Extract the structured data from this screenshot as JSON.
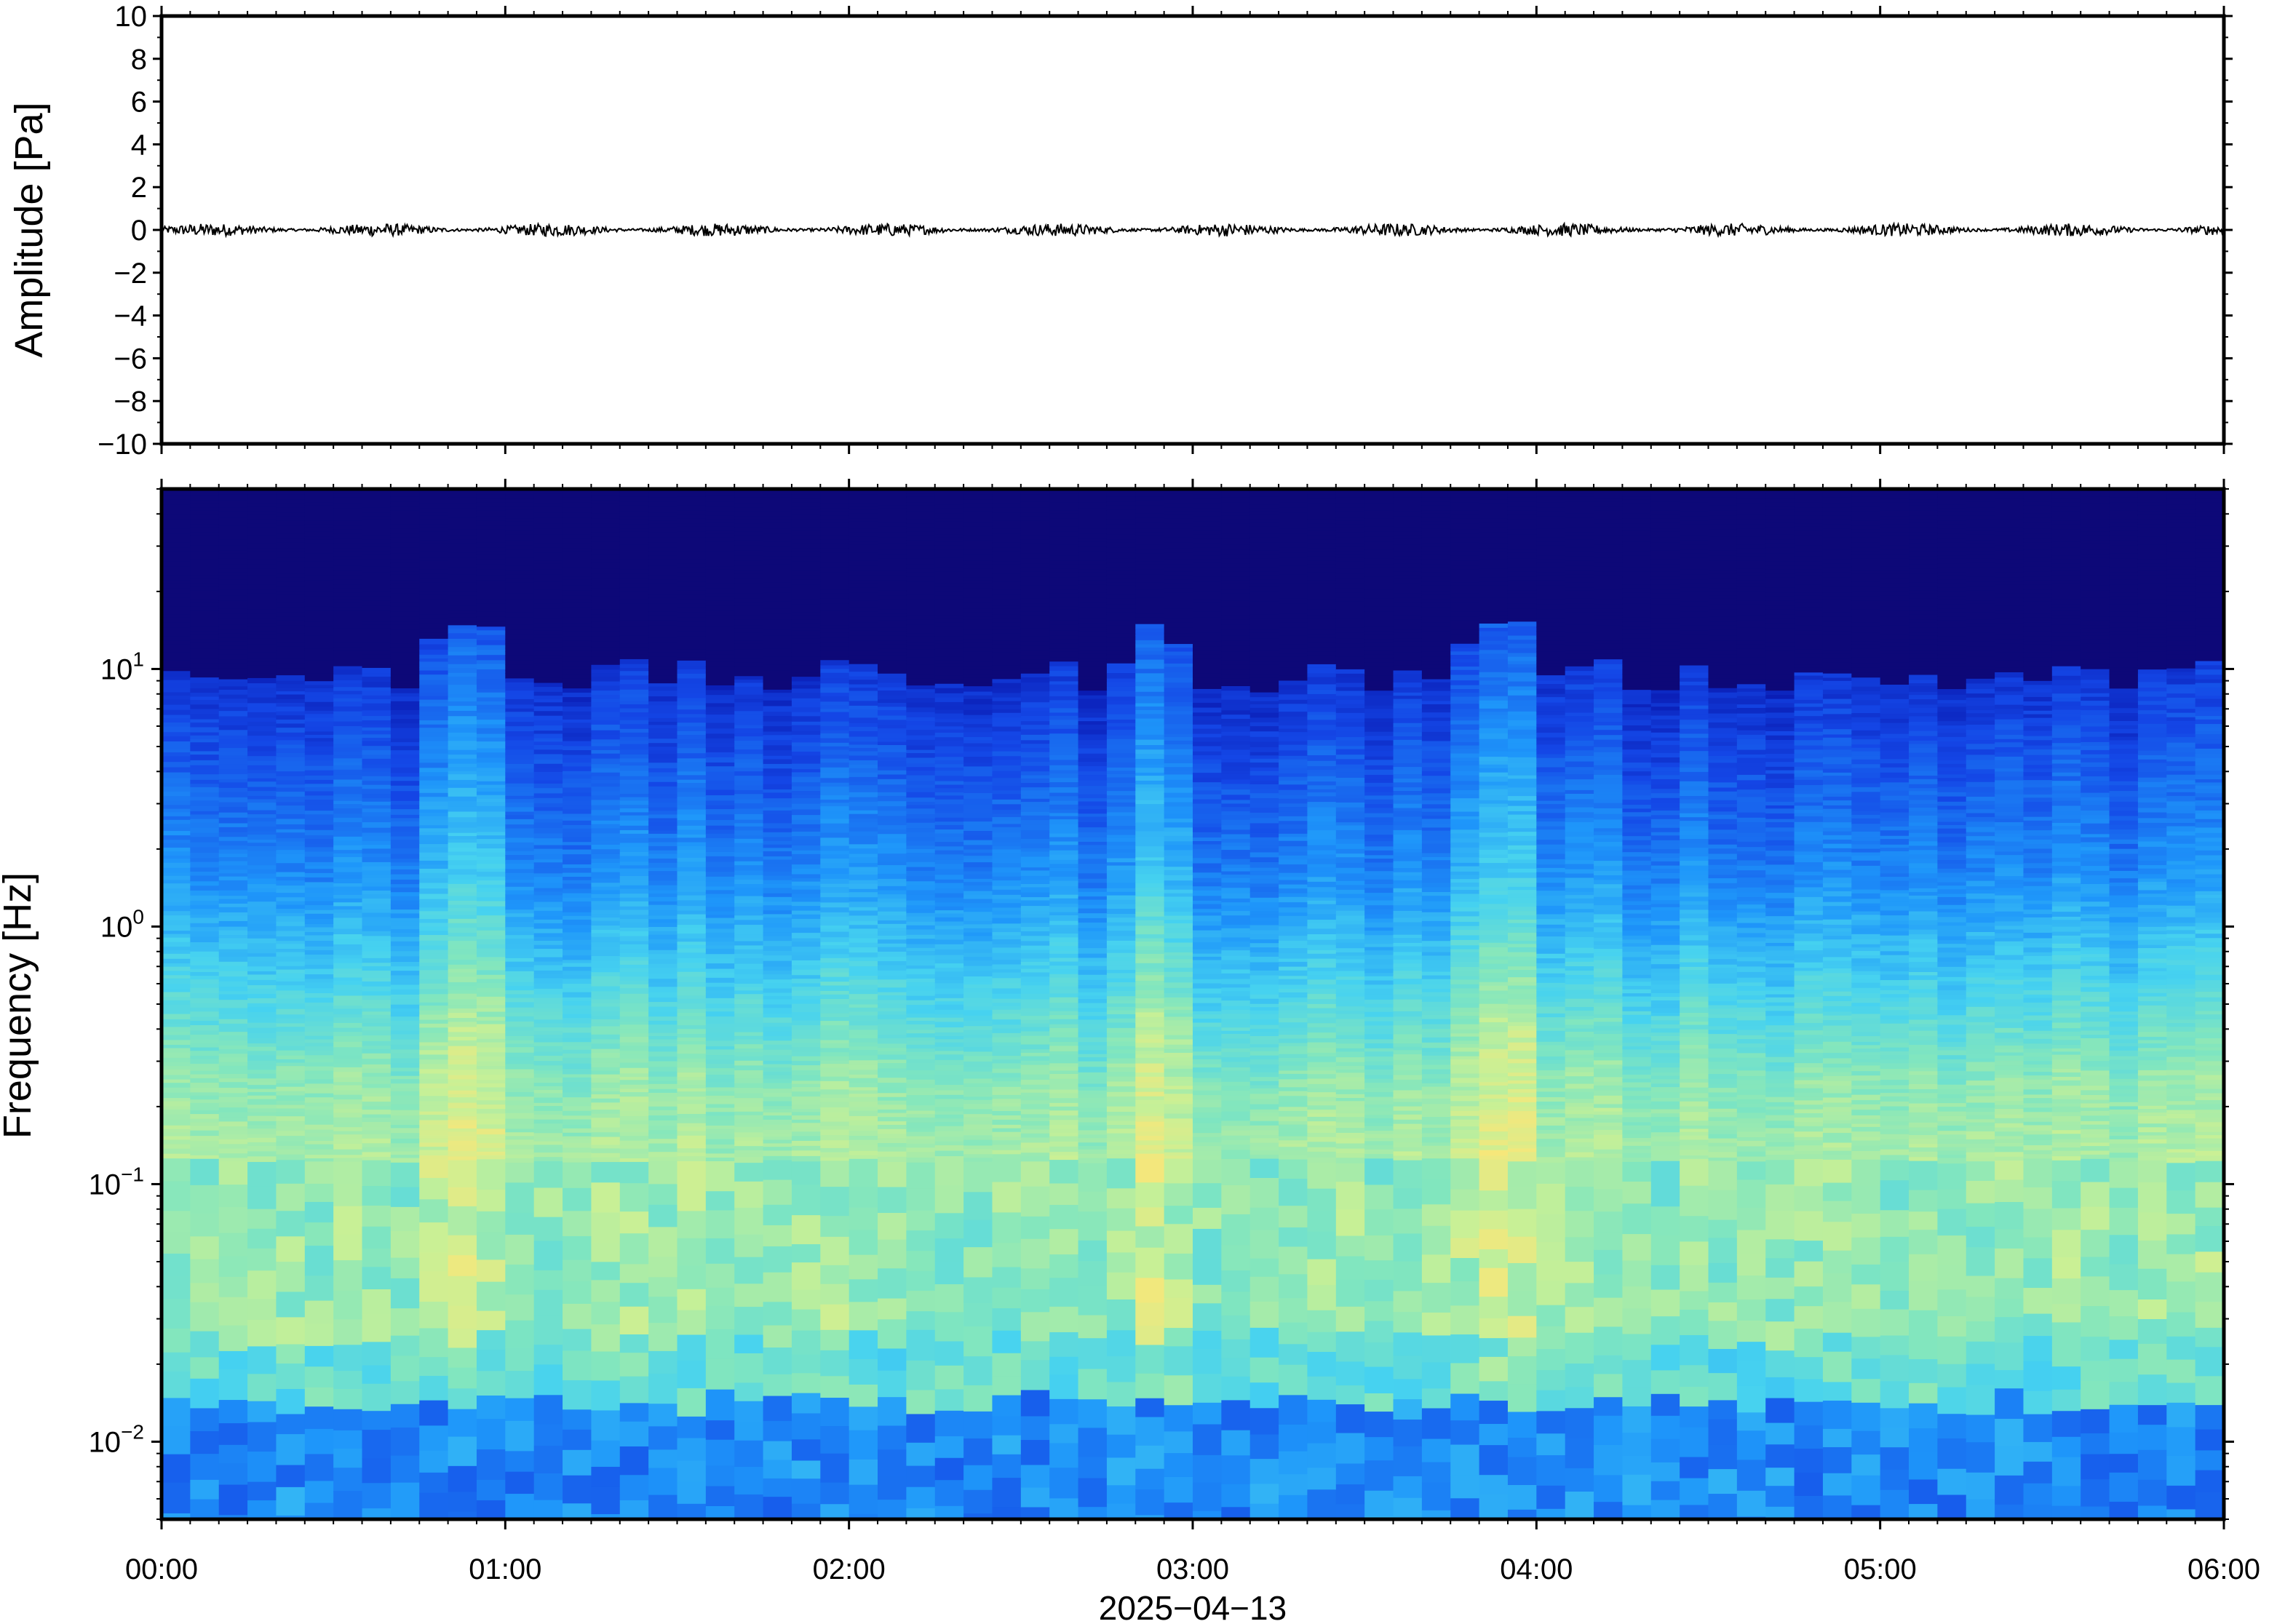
{
  "chart_data": [
    {
      "type": "line",
      "panel": "waveform",
      "ylabel": "Amplitude [Pa]",
      "ylim": [
        -10,
        10
      ],
      "y_ticks": [
        10,
        8,
        6,
        4,
        2,
        0,
        -2,
        -4,
        -6,
        -8,
        -10
      ],
      "y_tick_labels": [
        "10",
        "8",
        "6",
        "4",
        "2",
        "0",
        "−2",
        "−4",
        "−6",
        "−8",
        "−10"
      ],
      "xlim_hours": [
        0,
        6
      ],
      "series": [
        {
          "color": "#000000",
          "baseline": 0.0,
          "approx_peak_amplitude": 0.3
        }
      ],
      "grid": false
    },
    {
      "type": "heatmap",
      "panel": "spectrogram",
      "ylabel": "Frequency [Hz]",
      "yscale": "log",
      "ylim": [
        0.005,
        50
      ],
      "y_ticks": [
        0.01,
        0.1,
        1,
        10
      ],
      "y_tick_labels": [
        {
          "base": "10",
          "exp": "−2"
        },
        {
          "base": "10",
          "exp": "−1"
        },
        {
          "base": "10",
          "exp": "0"
        },
        {
          "base": "10",
          "exp": "1"
        }
      ],
      "xlim_hours": [
        0,
        6
      ],
      "x_ticks": [
        0,
        1,
        2,
        3,
        4,
        5,
        6
      ],
      "x_tick_labels": [
        "00:00",
        "01:00",
        "02:00",
        "03:00",
        "04:00",
        "05:00",
        "06:00"
      ],
      "xlabel": "2025−04−13",
      "colormap": "jet",
      "dominant_band_hz": [
        0.15,
        0.25
      ],
      "energy_bursts_hours": [
        0.85,
        0.95,
        2.9,
        3.85,
        3.95
      ],
      "upper_cutoff_hz_range": [
        6,
        15
      ]
    }
  ]
}
